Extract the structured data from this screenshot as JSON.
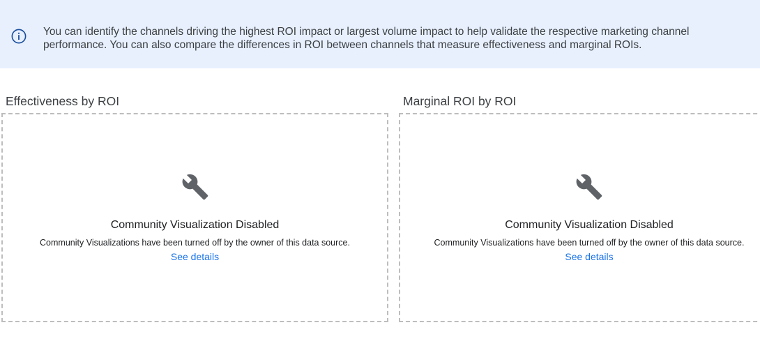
{
  "banner": {
    "icon": "info-icon",
    "text": "You can identify the channels driving the highest ROI impact or largest volume impact to help validate the respective marketing channel performance. You can also compare the differences in ROI between channels that measure effectiveness and marginal ROIs."
  },
  "panels": [
    {
      "title": "Effectiveness by ROI",
      "icon": "wrench-icon",
      "heading": "Community Visualization Disabled",
      "message": "Community Visualizations have been turned off by the owner of this data source.",
      "link": "See details"
    },
    {
      "title": "Marginal ROI by ROI",
      "icon": "wrench-icon",
      "heading": "Community Visualization Disabled",
      "message": "Community Visualizations have been turned off by the owner of this data source.",
      "link": "See details"
    }
  ],
  "colors": {
    "banner_bg": "#e8f0fe",
    "info_icon": "#1a4f9c",
    "link": "#1a73e8",
    "icon": "#5f6368"
  }
}
